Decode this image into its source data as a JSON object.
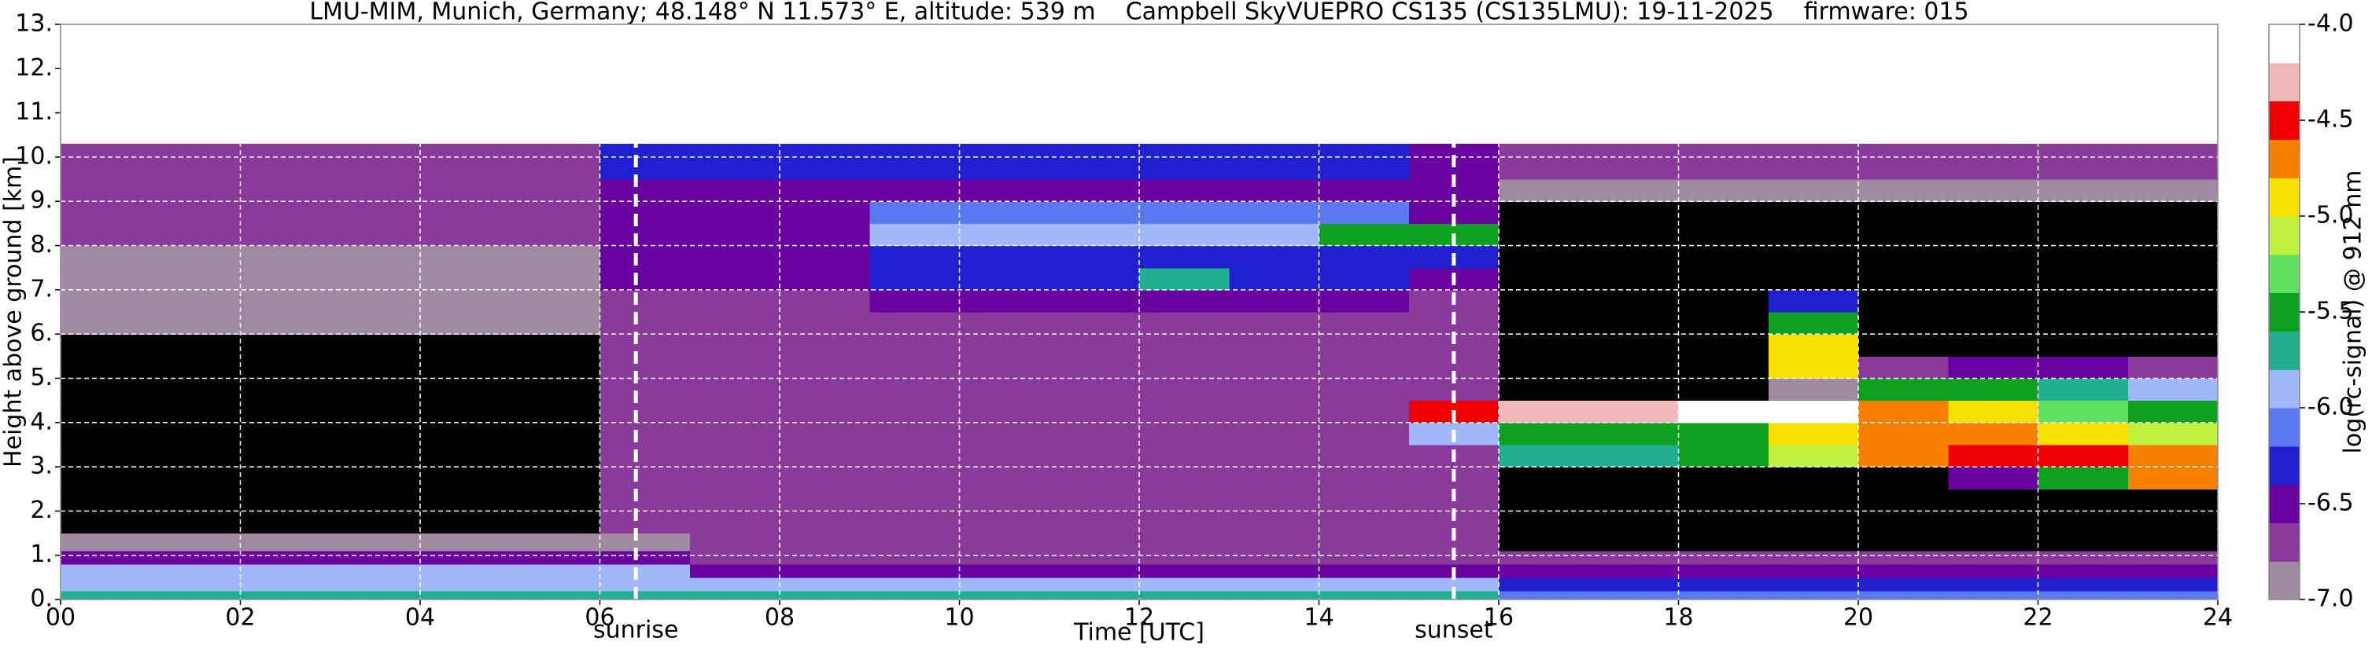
{
  "chart_data": {
    "type": "heatmap",
    "title": "LMU-MIM, Munich, Germany; 48.148° N 11.573° E, altitude: 539 m    Campbell SkyVUEPRO CS135 (CS135LMU): 19-11-2025    firmware: 015",
    "x_label": "Time [UTC]",
    "y_label": "Height above ground [km]",
    "xlim": [
      0,
      24
    ],
    "xticks": [
      {
        "value": 0,
        "label": "00"
      },
      {
        "value": 2,
        "label": "02"
      },
      {
        "value": 4,
        "label": "04"
      },
      {
        "value": 6,
        "label": "06"
      },
      {
        "value": 8,
        "label": "08"
      },
      10,
      12,
      14,
      16,
      18,
      20,
      22,
      24
    ],
    "ylim": [
      0,
      13
    ],
    "yticks": [
      {
        "value": 0,
        "label": "0."
      },
      {
        "value": 1,
        "label": "1."
      },
      {
        "value": 2,
        "label": "2."
      },
      {
        "value": 3,
        "label": "3."
      },
      {
        "value": 4,
        "label": "4."
      },
      {
        "value": 5,
        "label": "5."
      },
      {
        "value": 6,
        "label": "6."
      },
      {
        "value": 7,
        "label": "7."
      },
      {
        "value": 8,
        "label": "8."
      },
      {
        "value": 9,
        "label": "9."
      },
      {
        "value": 10,
        "label": "10."
      },
      {
        "value": 11,
        "label": "11."
      },
      {
        "value": 12,
        "label": "12."
      },
      {
        "value": 13,
        "label": "13."
      }
    ],
    "grid": true,
    "grid_color": "#ffffff",
    "xbins": [
      0,
      1,
      2,
      3,
      4,
      5,
      6,
      7,
      8,
      9,
      10,
      11,
      12,
      13,
      14,
      15,
      16,
      17,
      18,
      19,
      20,
      21,
      22,
      23,
      24
    ],
    "ybins": [
      0,
      0.2,
      0.5,
      0.8,
      1.1,
      1.5,
      2,
      2.5,
      3,
      3.5,
      4,
      4.5,
      5,
      5.5,
      6,
      6.5,
      7,
      7.5,
      8,
      8.5,
      9,
      9.5,
      10.3
    ],
    "z": [
      [
        -5.7,
        -5.7,
        -5.7,
        -5.7,
        -5.7,
        -5.7,
        -5.7,
        -5.8,
        -5.8,
        -5.8,
        -5.8,
        -5.8,
        -5.8,
        -5.8,
        -5.8,
        -5.8,
        -6.1,
        -6.1,
        -6.1,
        -6.1,
        -6.1,
        -6.1,
        -6.1,
        -6.1
      ],
      [
        -5.9,
        -5.9,
        -5.9,
        -5.9,
        -5.9,
        -5.9,
        -5.9,
        -6.0,
        -6.0,
        -6.0,
        -6.0,
        -6.0,
        -6.0,
        -6.0,
        -6.0,
        -6.0,
        -6.3,
        -6.3,
        -6.3,
        -6.3,
        -6.3,
        -6.3,
        -6.3,
        -6.3
      ],
      [
        -6.0,
        -6.0,
        -6.0,
        -6.0,
        -6.0,
        -6.0,
        -6.0,
        -6.4,
        -6.4,
        -6.4,
        -6.4,
        -6.4,
        -6.4,
        -6.4,
        -6.4,
        -6.4,
        -6.5,
        -6.5,
        -6.5,
        -6.5,
        -6.5,
        -6.5,
        -6.5,
        -6.5
      ],
      [
        -6.6,
        -6.6,
        -6.6,
        -6.6,
        -6.6,
        -6.6,
        -6.6,
        -6.7,
        -6.7,
        -6.7,
        -6.7,
        -6.7,
        -6.7,
        -6.7,
        -6.7,
        -6.7,
        -6.7,
        -6.7,
        -6.7,
        -6.7,
        -6.7,
        -6.7,
        -6.7,
        -6.7
      ],
      [
        -6.9,
        -6.9,
        -6.9,
        -6.9,
        -6.9,
        -6.9,
        -6.9,
        -6.7,
        -6.7,
        -6.7,
        -6.7,
        -6.7,
        -6.7,
        -6.7,
        -6.7,
        -6.7,
        -7.2,
        -7.2,
        -7.2,
        -7.2,
        -7.2,
        -7.2,
        -7.2,
        -7.2
      ],
      [
        -7.2,
        -7.2,
        -7.2,
        -7.2,
        -7.2,
        -7.2,
        -6.8,
        -6.8,
        -6.8,
        -6.8,
        -6.8,
        -6.8,
        -6.8,
        -6.8,
        -6.8,
        -6.8,
        -7.3,
        -7.3,
        -7.3,
        -7.3,
        -7.3,
        -7.3,
        -7.3,
        -7.3
      ],
      [
        -7.1,
        -7.1,
        -7.1,
        -7.1,
        -7.1,
        -7.1,
        -6.8,
        -6.8,
        -6.8,
        -6.8,
        -6.8,
        -6.8,
        -6.8,
        -6.8,
        -6.8,
        -6.8,
        -7.3,
        -7.3,
        -7.3,
        -7.3,
        -7.3,
        -7.3,
        -7.3,
        -7.3
      ],
      [
        -7.1,
        -7.1,
        -7.1,
        -7.1,
        -7.1,
        -7.1,
        -6.8,
        -6.8,
        -6.8,
        -6.8,
        -6.8,
        -6.8,
        -6.8,
        -6.8,
        -6.8,
        -6.8,
        -7.3,
        -7.3,
        -7.3,
        -7.3,
        -7.3,
        -6.5,
        -5.5,
        -4.8
      ],
      [
        -7.1,
        -7.1,
        -7.1,
        -7.1,
        -7.1,
        -7.1,
        -6.8,
        -6.8,
        -6.8,
        -6.8,
        -6.8,
        -6.8,
        -6.8,
        -6.8,
        -6.8,
        -6.8,
        -5.8,
        -5.7,
        -5.6,
        -5.2,
        -4.8,
        -4.6,
        -4.5,
        -4.7
      ],
      [
        -7.1,
        -7.1,
        -7.1,
        -7.1,
        -7.1,
        -7.1,
        -6.8,
        -6.8,
        -6.8,
        -6.8,
        -6.8,
        -6.8,
        -6.8,
        -6.8,
        -6.8,
        -6.0,
        -5.6,
        -5.5,
        -5.4,
        -5.0,
        -4.7,
        -4.8,
        -5.0,
        -5.2
      ],
      [
        -7.1,
        -7.1,
        -7.1,
        -7.1,
        -7.1,
        -7.1,
        -6.8,
        -6.8,
        -6.8,
        -6.8,
        -6.8,
        -6.8,
        -6.8,
        -6.8,
        -6.8,
        -4.4,
        -4.2,
        -4.2,
        -4.1,
        -4.1,
        -4.7,
        -5.0,
        -5.3,
        -5.6
      ],
      [
        -7.1,
        -7.1,
        -7.1,
        -7.1,
        -7.1,
        -7.1,
        -6.8,
        -6.8,
        -6.8,
        -6.8,
        -6.8,
        -6.8,
        -6.8,
        -6.8,
        -6.8,
        -6.8,
        -7.2,
        -7.2,
        -7.2,
        -7.0,
        -5.6,
        -5.4,
        -5.8,
        -6.0
      ],
      [
        -7.1,
        -7.1,
        -7.1,
        -7.1,
        -7.1,
        -7.1,
        -6.8,
        -6.8,
        -6.8,
        -6.8,
        -6.8,
        -6.8,
        -6.8,
        -6.8,
        -6.8,
        -6.8,
        -7.3,
        -7.3,
        -7.3,
        -5.0,
        -6.8,
        -6.5,
        -6.6,
        -6.8
      ],
      [
        -7.1,
        -7.1,
        -7.1,
        -7.1,
        -7.1,
        -7.1,
        -6.8,
        -6.8,
        -6.8,
        -6.8,
        -6.8,
        -6.8,
        -6.8,
        -6.8,
        -6.8,
        -6.8,
        -7.3,
        -7.3,
        -7.3,
        -4.9,
        -7.3,
        -7.3,
        -7.3,
        -7.3
      ],
      [
        -7.0,
        -7.0,
        -7.0,
        -7.0,
        -7.0,
        -7.0,
        -6.7,
        -6.7,
        -6.7,
        -6.7,
        -6.7,
        -6.7,
        -6.7,
        -6.7,
        -6.7,
        -6.7,
        -7.3,
        -7.3,
        -7.3,
        -5.6,
        -7.3,
        -7.3,
        -7.3,
        -7.3
      ],
      [
        -7.0,
        -7.0,
        -7.0,
        -7.0,
        -7.0,
        -7.0,
        -6.7,
        -6.7,
        -6.7,
        -6.4,
        -6.4,
        -6.4,
        -6.4,
        -6.4,
        -6.4,
        -6.7,
        -7.3,
        -7.3,
        -7.3,
        -6.3,
        -7.3,
        -7.3,
        -7.3,
        -7.3
      ],
      [
        -6.9,
        -6.9,
        -6.9,
        -6.9,
        -6.9,
        -6.9,
        -6.6,
        -6.6,
        -6.6,
        -6.2,
        -6.2,
        -6.2,
        -5.7,
        -6.2,
        -6.2,
        -6.6,
        -7.2,
        -7.2,
        -7.2,
        -7.2,
        -7.2,
        -7.2,
        -7.2,
        -7.2
      ],
      [
        -6.9,
        -6.9,
        -6.9,
        -6.9,
        -6.9,
        -6.9,
        -6.6,
        -6.6,
        -6.6,
        -6.2,
        -6.2,
        -6.2,
        -6.2,
        -6.2,
        -6.2,
        -6.3,
        -7.2,
        -7.2,
        -7.2,
        -7.2,
        -7.2,
        -7.2,
        -7.2,
        -7.2
      ],
      [
        -6.8,
        -6.8,
        -6.8,
        -6.8,
        -6.8,
        -6.8,
        -6.5,
        -6.5,
        -6.5,
        -6.0,
        -6.0,
        -6.0,
        -6.0,
        -6.0,
        -5.4,
        -5.4,
        -7.2,
        -7.2,
        -7.2,
        -7.2,
        -7.2,
        -7.2,
        -7.2,
        -7.2
      ],
      [
        -6.8,
        -6.8,
        -6.8,
        -6.8,
        -6.8,
        -6.8,
        -6.4,
        -6.4,
        -6.4,
        -6.1,
        -6.1,
        -6.1,
        -6.1,
        -6.1,
        -6.1,
        -6.6,
        -7.1,
        -7.1,
        -7.1,
        -7.1,
        -7.1,
        -7.1,
        -7.1,
        -7.1
      ],
      [
        -6.8,
        -6.8,
        -6.8,
        -6.8,
        -6.8,
        -6.8,
        -6.4,
        -6.4,
        -6.4,
        -6.4,
        -6.4,
        -6.4,
        -6.4,
        -6.4,
        -6.4,
        -6.6,
        -7.0,
        -7.0,
        -7.0,
        -7.0,
        -7.0,
        -7.0,
        -7.0,
        -7.0
      ],
      [
        -6.7,
        -6.7,
        -6.7,
        -6.7,
        -6.7,
        -6.7,
        -6.3,
        -6.3,
        -6.3,
        -6.3,
        -6.3,
        -6.3,
        -6.3,
        -6.3,
        -6.3,
        -6.6,
        -6.8,
        -6.8,
        -6.8,
        -6.8,
        -6.8,
        -6.8,
        -6.8,
        -6.8
      ]
    ],
    "zlim": [
      -7,
      -4
    ],
    "colorbar_label": "log(rc-signal) @ 912 nm",
    "colorbar_ticks": [
      {
        "value": -7,
        "label": "-7.0"
      },
      {
        "value": -6.5,
        "label": "-6.5"
      },
      {
        "value": -6,
        "label": "-6.0"
      },
      {
        "value": -5.5,
        "label": "-5.5"
      },
      {
        "value": -5,
        "label": "-5.0"
      },
      {
        "value": -4.5,
        "label": "-4.5"
      },
      {
        "value": -4,
        "label": "-4.0"
      }
    ],
    "colors": [
      "#a08aa0",
      "#8a3a9a",
      "#6a00a0",
      "#2020d0",
      "#5a78f0",
      "#a0b8f8",
      "#20b090",
      "#10a020",
      "#60e060",
      "#c0f040",
      "#f8e000",
      "#f88000",
      "#f00000",
      "#f0b8b8",
      "#ffffff"
    ],
    "under_color": "#000000",
    "annotations": [
      {
        "text": "sunrise",
        "x": 6.4
      },
      {
        "text": "sunset",
        "x": 15.5
      }
    ]
  }
}
